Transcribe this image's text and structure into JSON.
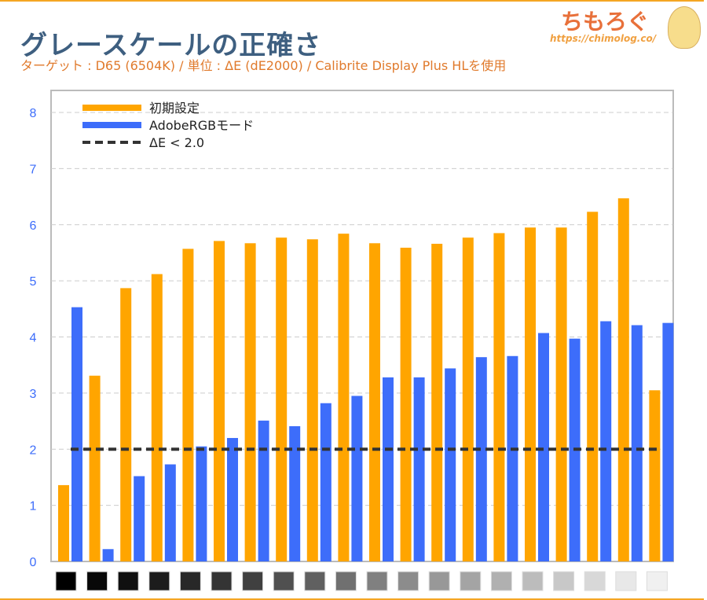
{
  "header": {
    "title": "グレースケールの正確さ",
    "subtitle": "ターゲット : D65 (6504K) / 単位 : ΔE (dE2000) / Calibrite Display Plus HLを使用",
    "logo_text": "ちもろぐ",
    "logo_url": "https://chimolog.co/"
  },
  "colors": {
    "orange": "#ffa500",
    "blue": "#3d6dfa",
    "threshold": "#333333",
    "border": "#f5a623"
  },
  "chart_data": {
    "type": "bar",
    "title": "グレースケールの正確さ",
    "ylim": [
      0,
      8
    ],
    "yticks": [
      0,
      1,
      2,
      3,
      4,
      5,
      6,
      7,
      8
    ],
    "grid": true,
    "legend_position": "top-left",
    "categories_gray_levels": [
      0,
      8,
      16,
      28,
      40,
      52,
      64,
      80,
      96,
      112,
      128,
      140,
      152,
      164,
      176,
      188,
      200,
      216,
      232,
      240
    ],
    "series": [
      {
        "name": "初期設定",
        "color": "#ffa500",
        "values": [
          1.36,
          3.31,
          4.87,
          5.12,
          5.57,
          5.71,
          5.67,
          5.77,
          5.74,
          5.84,
          5.67,
          5.59,
          5.66,
          5.77,
          5.85,
          5.95,
          5.95,
          6.23,
          6.47,
          3.05
        ]
      },
      {
        "name": "AdobeRGBモード",
        "color": "#3d6dfa",
        "values": [
          4.53,
          0.22,
          1.52,
          1.73,
          2.05,
          2.2,
          2.51,
          2.41,
          2.82,
          2.95,
          3.28,
          3.28,
          3.44,
          3.64,
          3.66,
          4.07,
          3.97,
          4.28,
          4.21,
          4.25
        ]
      }
    ],
    "threshold": {
      "name": "ΔE < 2.0",
      "value": 2.0,
      "style": "dashed"
    }
  }
}
